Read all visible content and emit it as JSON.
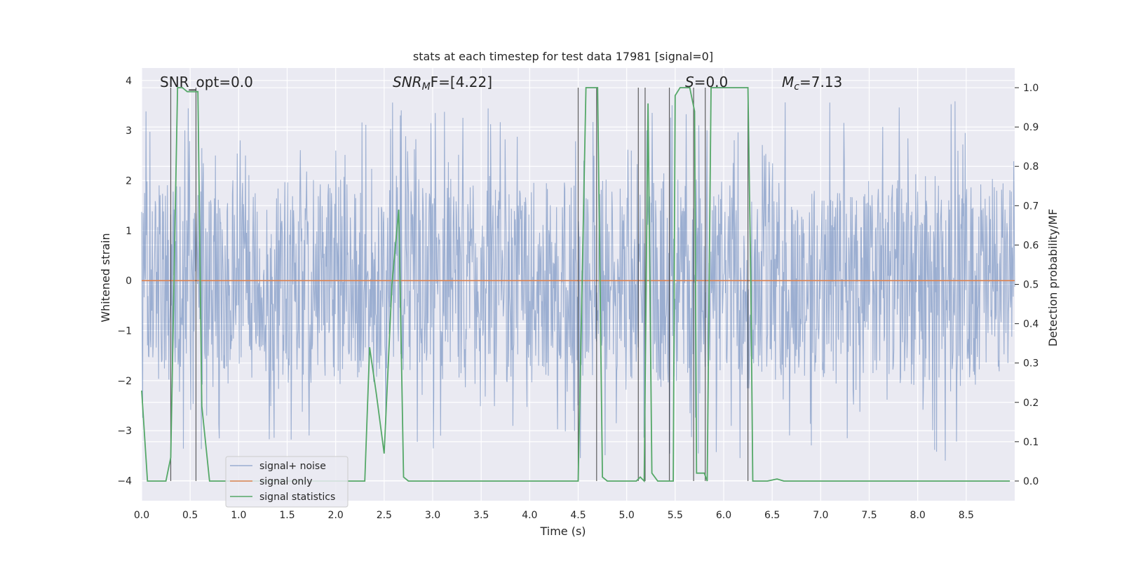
{
  "chart_data": {
    "type": "line",
    "title": "stats at each timestep for test data 17981 [signal=0]",
    "xlabel": "Time (s)",
    "ylabel": "Whitened strain",
    "y2label": "Detection probability/MF",
    "xlim": [
      0,
      9
    ],
    "ylim": [
      -4.4,
      4.25
    ],
    "y2lim": [
      -0.05,
      1.05
    ],
    "xticks": [
      "0.0",
      "0.5",
      "1.0",
      "1.5",
      "2.0",
      "2.5",
      "3.0",
      "3.5",
      "4.0",
      "4.5",
      "5.0",
      "5.5",
      "6.0",
      "6.5",
      "7.0",
      "7.5",
      "8.0",
      "8.5"
    ],
    "xtick_values": [
      0,
      0.5,
      1,
      1.5,
      2,
      2.5,
      3,
      3.5,
      4,
      4.5,
      5,
      5.5,
      6,
      6.5,
      7,
      7.5,
      8,
      8.5
    ],
    "yticks": [
      "4",
      "3",
      "2",
      "1",
      "0",
      "−1",
      "−2",
      "−3",
      "−4"
    ],
    "ytick_values": [
      4,
      3,
      2,
      1,
      0,
      -1,
      -2,
      -3,
      -4
    ],
    "y2ticks": [
      "1.0",
      "0.9",
      "0.8",
      "0.7",
      "0.6",
      "0.5",
      "0.4",
      "0.3",
      "0.2",
      "0.1",
      "0.0"
    ],
    "y2tick_values": [
      1,
      0.9,
      0.8,
      0.7,
      0.6,
      0.5,
      0.4,
      0.3,
      0.2,
      0.1,
      0
    ],
    "grid": true,
    "legend_position": "lower-left",
    "annotations": {
      "snr_opt": "SNR_opt=0.0",
      "snr_mf_prefix": "SNR",
      "snr_mf_sub": "M",
      "snr_mf_suffix": "F=[4.22]",
      "s_italic": "S",
      "s_value": "=0.0",
      "mc_main": "M",
      "mc_sub": "c",
      "mc_value": "=7.13"
    },
    "series": [
      {
        "name": "signal+ noise",
        "color": "#4c72b0",
        "note": "whitened strain noise, approx. uniform random in [-1.9, 2.2] with occasional peaks up to 3.6 and down to -4.0"
      },
      {
        "name": "signal only",
        "color": "#dd8452",
        "values_constant": 0
      },
      {
        "name": "signal statistics",
        "color": "#55a868",
        "x": [
          0.0,
          0.06,
          0.12,
          0.25,
          0.3,
          0.37,
          0.42,
          0.47,
          0.53,
          0.58,
          0.62,
          0.7,
          0.8,
          2.0,
          2.3,
          2.35,
          2.42,
          2.5,
          2.58,
          2.65,
          2.7,
          2.75,
          4.45,
          4.5,
          4.58,
          4.7,
          4.75,
          4.8,
          5.1,
          5.14,
          5.18,
          5.22,
          5.26,
          5.32,
          5.44,
          5.48,
          5.5,
          5.55,
          5.6,
          5.65,
          5.7,
          5.72,
          5.8,
          5.83,
          5.87,
          6.25,
          6.28,
          6.3,
          6.38,
          6.45,
          6.55,
          6.62,
          7.0,
          8.0,
          8.95
        ],
        "values": [
          0.23,
          0.0,
          0.0,
          0.0,
          0.06,
          1.0,
          1.0,
          0.99,
          0.99,
          0.99,
          0.19,
          0.0,
          0.0,
          0.0,
          0.0,
          0.34,
          0.22,
          0.07,
          0.5,
          0.69,
          0.01,
          0.0,
          0.0,
          0.0,
          1.0,
          1.0,
          0.01,
          0.0,
          0.0,
          0.01,
          0.0,
          0.96,
          0.02,
          0.0,
          0.0,
          0.0,
          0.98,
          1.0,
          1.0,
          1.0,
          0.94,
          0.02,
          0.02,
          0.0,
          1.0,
          1.0,
          0.5,
          0.0,
          0.0,
          0.0,
          0.005,
          0.0,
          0.0,
          0.0,
          0.0
        ]
      }
    ],
    "vlines_x": [
      0.3,
      0.56,
      4.5,
      4.69,
      5.12,
      5.19,
      5.44,
      5.69,
      5.81,
      6.25
    ]
  }
}
